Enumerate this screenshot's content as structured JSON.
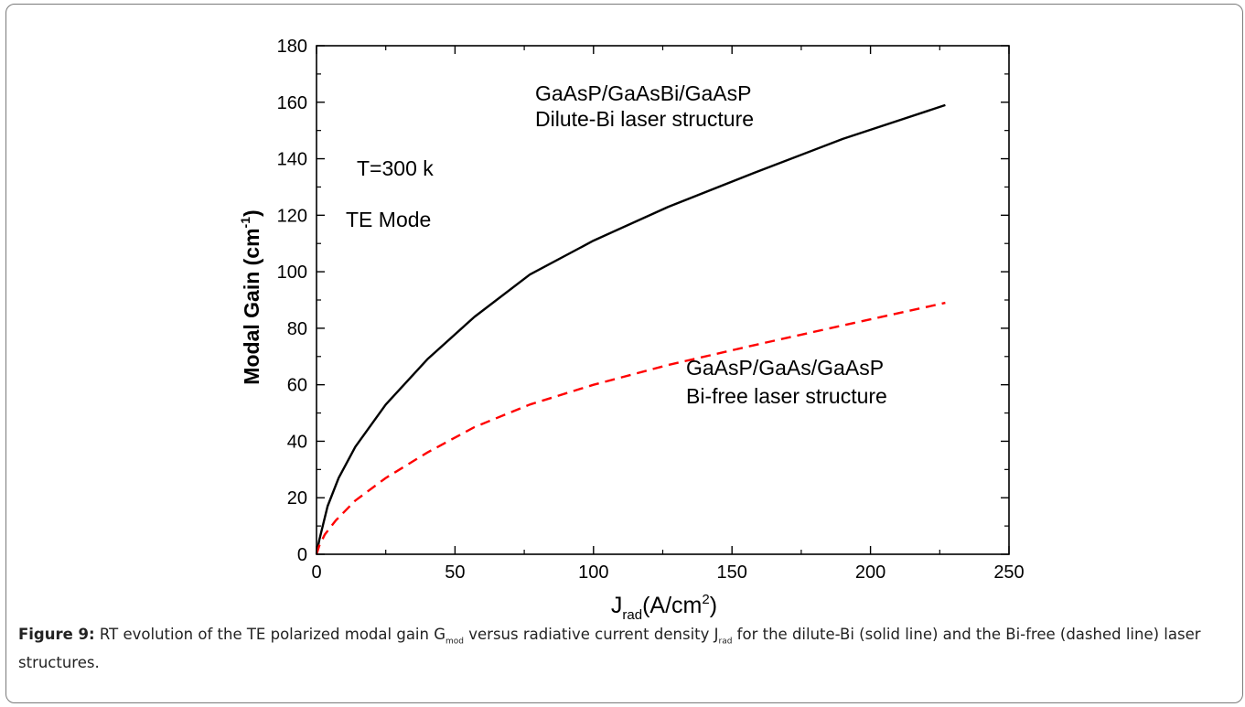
{
  "chart_data": {
    "type": "line",
    "xlabel": "J",
    "xlabel_sub": "rad",
    "xlabel_unit": "(A/cm",
    "xlabel_unit_sup": "2",
    "xlabel_close": ")",
    "ylabel": "Modal Gain (cm",
    "ylabel_sup": "-1",
    "ylabel_close": ")",
    "xlim": [
      0,
      250
    ],
    "ylim": [
      0,
      180
    ],
    "xticks": [
      0,
      50,
      100,
      150,
      200,
      250
    ],
    "yticks": [
      0,
      20,
      40,
      60,
      80,
      100,
      120,
      140,
      160,
      180
    ],
    "grid": false,
    "series": [
      {
        "style": "solid",
        "color": "#000000",
        "x": [
          0,
          1,
          4,
          8,
          14,
          25,
          40,
          57,
          77,
          100,
          127,
          158,
          190,
          227
        ],
        "y": [
          0,
          5,
          17,
          27,
          38,
          53,
          69,
          84,
          99,
          111,
          123,
          135,
          147,
          159
        ]
      },
      {
        "style": "dashed",
        "color": "#ff0000",
        "x": [
          0,
          1,
          3,
          7,
          14,
          25,
          40,
          57,
          77,
          100,
          127,
          158,
          190,
          227
        ],
        "y": [
          0,
          3,
          7,
          12,
          19,
          27,
          36,
          45,
          53,
          60,
          67,
          74,
          81,
          89
        ]
      }
    ],
    "annotations": {
      "dilute_line1": "GaAsP/GaAsBi/GaAsP",
      "dilute_line2": "Dilute-Bi laser structure",
      "free_line1": "GaAsP/GaAs/GaAsP",
      "free_line2": "Bi-free laser structure",
      "temperature": "T=300 k",
      "mode": "TE Mode"
    }
  },
  "caption": {
    "label": "Figure 9:",
    "t1": " RT evolution of the TE polarized modal gain G",
    "s1": "mod",
    "t2": " versus radiative current density J",
    "s2": "rad",
    "t3": " for the dilute-Bi (solid line) and the Bi-free  (dashed line) laser structures."
  }
}
